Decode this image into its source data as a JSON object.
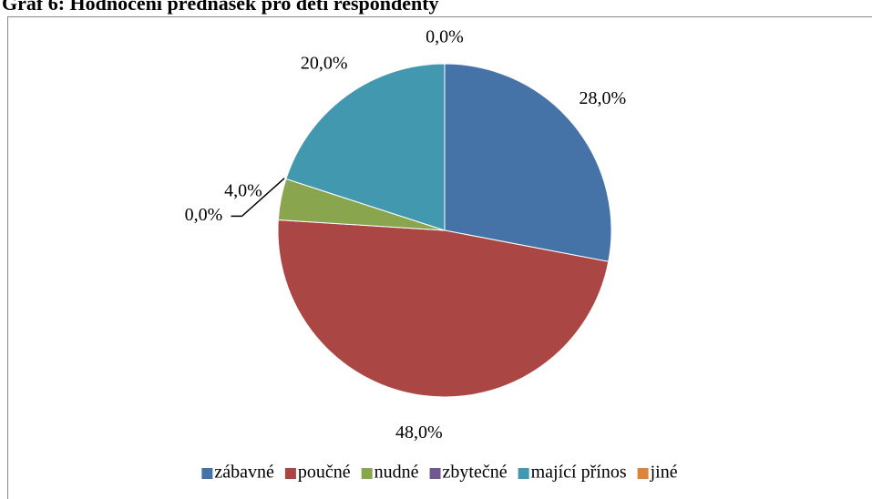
{
  "chart_data": {
    "type": "pie",
    "title": "Graf 6: Hodnocení přednášek pro děti respondenty",
    "categories": [
      "zábavné",
      "poučné",
      "nudné",
      "zbytečné",
      "mající přínos",
      "jiné"
    ],
    "values": [
      28,
      48,
      4,
      0,
      20,
      0
    ],
    "value_labels": [
      "28,0%",
      "48,0%",
      "4,0%",
      "0,0%",
      "20,0%",
      "0,0%"
    ],
    "colors": [
      "#4572a7",
      "#aa4643",
      "#89a54e",
      "#71588f",
      "#4198af",
      "#db843d"
    ],
    "legend": "bottom"
  }
}
